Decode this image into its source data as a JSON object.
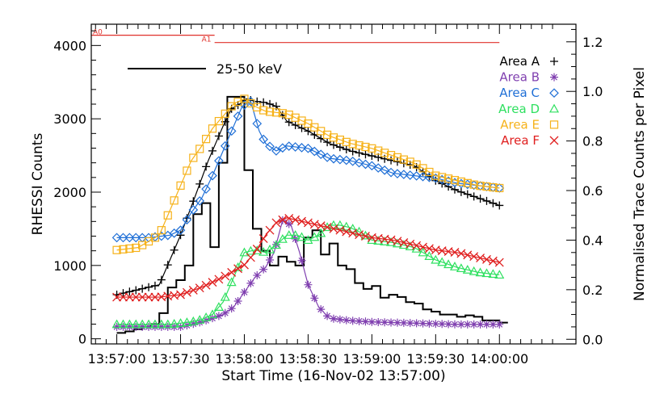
{
  "chart_data": {
    "type": "line",
    "title": "",
    "xlabel": "Start Time (16-Nov-02 13:57:00)",
    "ylabel": "RHESSI Counts",
    "y2label": "Normalised Trace Counts per Pixel",
    "xlim": [
      -12,
      216
    ],
    "ylim": [
      -70,
      4290
    ],
    "y2lim": [
      -0.0187,
      1.271
    ],
    "x_ticks": [
      0,
      30,
      60,
      90,
      120,
      150,
      180
    ],
    "x_tick_labels": [
      "13:57:00",
      "13:57:30",
      "13:58:00",
      "13:58:30",
      "13:59:00",
      "13:59:30",
      "14:00:00"
    ],
    "y_ticks": [
      0,
      1000,
      2000,
      3000,
      4000
    ],
    "y_tick_labels": [
      "0",
      "1000",
      "2000",
      "3000",
      "4000"
    ],
    "y2_ticks": [
      0,
      0.2,
      0.4,
      0.6,
      0.8,
      1.0,
      1.2
    ],
    "y2_tick_labels": [
      "0.0",
      "0.2",
      "0.4",
      "0.6",
      "0.8",
      "1.0",
      "1.2"
    ],
    "rhessi_series": {
      "name": "25-50 keV",
      "color": "#000000",
      "step": 4,
      "x": [
        0,
        4,
        8,
        12,
        16,
        20,
        24,
        28,
        32,
        36,
        40,
        44,
        48,
        52,
        56,
        60,
        64,
        68,
        72,
        76,
        80,
        84,
        88,
        92,
        96,
        100,
        104,
        108,
        112,
        116,
        120,
        124,
        128,
        132,
        136,
        140,
        144,
        148,
        152,
        156,
        160,
        164,
        168,
        172,
        176,
        180
      ],
      "values": [
        80,
        100,
        130,
        160,
        200,
        350,
        700,
        800,
        1000,
        1700,
        1850,
        1250,
        2400,
        3300,
        3300,
        2300,
        1500,
        1200,
        1000,
        1120,
        1050,
        1000,
        1380,
        1480,
        1150,
        1300,
        1000,
        950,
        760,
        680,
        720,
        560,
        600,
        570,
        500,
        480,
        400,
        370,
        330,
        330,
        300,
        320,
        300,
        250,
        250,
        220
      ]
    },
    "trace_series": [
      {
        "name": "Area A",
        "color": "#000000",
        "marker": "plus",
        "x": [
          0,
          20,
          30,
          37,
          43,
          50,
          54,
          58,
          61,
          65,
          70,
          75,
          80,
          90,
          100,
          110,
          120,
          130,
          140,
          150,
          160,
          170,
          180
        ],
        "values": [
          0.18,
          0.22,
          0.42,
          0.58,
          0.72,
          0.86,
          0.93,
          0.95,
          0.97,
          0.96,
          0.955,
          0.94,
          0.88,
          0.84,
          0.79,
          0.76,
          0.74,
          0.72,
          0.7,
          0.64,
          0.6,
          0.57,
          0.54
        ]
      },
      {
        "name": "Area B",
        "color": "#8040b0",
        "marker": "asterisk",
        "x": [
          0,
          30,
          40,
          50,
          55,
          60,
          65,
          70,
          74,
          78,
          82,
          86,
          90,
          95,
          100,
          110,
          120,
          140,
          160,
          180
        ],
        "values": [
          0.05,
          0.05,
          0.07,
          0.1,
          0.13,
          0.19,
          0.25,
          0.29,
          0.35,
          0.48,
          0.46,
          0.35,
          0.22,
          0.13,
          0.085,
          0.075,
          0.07,
          0.065,
          0.06,
          0.06
        ]
      },
      {
        "name": "Area C",
        "color": "#1f6fd6",
        "marker": "diamond",
        "x": [
          0,
          15,
          25,
          30,
          35,
          40,
          45,
          50,
          55,
          59,
          63,
          67,
          70,
          75,
          80,
          90,
          100,
          110,
          120,
          130,
          140,
          150,
          160,
          170,
          180
        ],
        "values": [
          0.41,
          0.41,
          0.42,
          0.44,
          0.51,
          0.57,
          0.66,
          0.76,
          0.86,
          0.94,
          0.96,
          0.84,
          0.79,
          0.76,
          0.78,
          0.77,
          0.73,
          0.72,
          0.7,
          0.67,
          0.66,
          0.65,
          0.63,
          0.62,
          0.61
        ]
      },
      {
        "name": "Area D",
        "color": "#2fe060",
        "marker": "triangle",
        "x": [
          0,
          25,
          35,
          40,
          45,
          50,
          55,
          60,
          65,
          70,
          75,
          80,
          85,
          90,
          95,
          100,
          105,
          110,
          115,
          120,
          130,
          140,
          150,
          160,
          170,
          180
        ],
        "values": [
          0.06,
          0.06,
          0.07,
          0.08,
          0.1,
          0.15,
          0.25,
          0.35,
          0.36,
          0.35,
          0.38,
          0.42,
          0.42,
          0.4,
          0.42,
          0.46,
          0.46,
          0.45,
          0.43,
          0.4,
          0.39,
          0.37,
          0.32,
          0.29,
          0.27,
          0.26
        ]
      },
      {
        "name": "Area E",
        "color": "#f6b21a",
        "marker": "square",
        "x": [
          0,
          10,
          20,
          25,
          30,
          35,
          40,
          45,
          50,
          55,
          60,
          65,
          70,
          75,
          80,
          85,
          90,
          100,
          110,
          120,
          130,
          140,
          150,
          160,
          170,
          180
        ],
        "values": [
          0.36,
          0.37,
          0.42,
          0.52,
          0.62,
          0.72,
          0.78,
          0.85,
          0.9,
          0.95,
          0.97,
          0.94,
          0.92,
          0.915,
          0.91,
          0.89,
          0.87,
          0.82,
          0.79,
          0.77,
          0.74,
          0.71,
          0.66,
          0.64,
          0.62,
          0.61
        ]
      },
      {
        "name": "Area F",
        "color": "#e02020",
        "marker": "cross",
        "x": [
          0,
          20,
          30,
          40,
          50,
          60,
          65,
          70,
          75,
          80,
          85,
          90,
          95,
          100,
          110,
          120,
          130,
          140,
          150,
          160,
          170,
          180
        ],
        "values": [
          0.17,
          0.17,
          0.18,
          0.21,
          0.25,
          0.3,
          0.35,
          0.42,
          0.47,
          0.49,
          0.48,
          0.47,
          0.46,
          0.45,
          0.43,
          0.41,
          0.4,
          0.38,
          0.36,
          0.35,
          0.33,
          0.31
        ]
      }
    ],
    "attenuator_bars": [
      {
        "label": "A0",
        "x_start": -12,
        "x_end": 46,
        "y": 4140
      },
      {
        "label": "A1",
        "x_start": 46,
        "x_end": 180,
        "y": 4040
      }
    ],
    "legend_position": "top-right",
    "annotation_color": "#e0302a"
  }
}
